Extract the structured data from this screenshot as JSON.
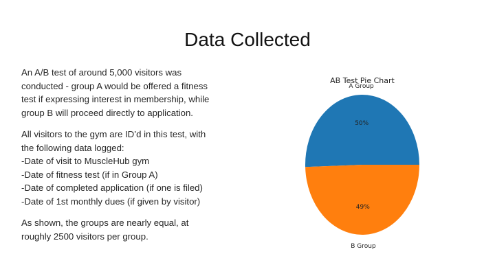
{
  "slide": {
    "title": "Data Collected",
    "paragraphs": [
      {
        "lines": [
          "An A/B test of around 5,000 visitors was",
          "conducted - group A would be offered a fitness",
          "test if expressing interest in membership, while",
          "group B will proceed directly to application."
        ]
      },
      {
        "lines": [
          "All visitors to the gym are ID’d in this test, with",
          "the following data logged:",
          "-Date of visit to MuscleHub gym",
          "-Date of fitness test (if in Group A)",
          "-Date of completed application (if one is filed)",
          "-Date of 1st monthly dues (if given by visitor)"
        ]
      },
      {
        "lines": [
          "As shown, the groups are nearly equal, at",
          "roughly 2500 visitors per group."
        ]
      }
    ]
  },
  "chart_data": {
    "type": "pie",
    "title": "AB Test Pie Chart",
    "labels": [
      "A Group",
      "B Group"
    ],
    "values": [
      50,
      49
    ],
    "pct_labels": [
      "50%",
      "49%"
    ],
    "colors": [
      "#1f77b4",
      "#ff7f0e"
    ]
  }
}
